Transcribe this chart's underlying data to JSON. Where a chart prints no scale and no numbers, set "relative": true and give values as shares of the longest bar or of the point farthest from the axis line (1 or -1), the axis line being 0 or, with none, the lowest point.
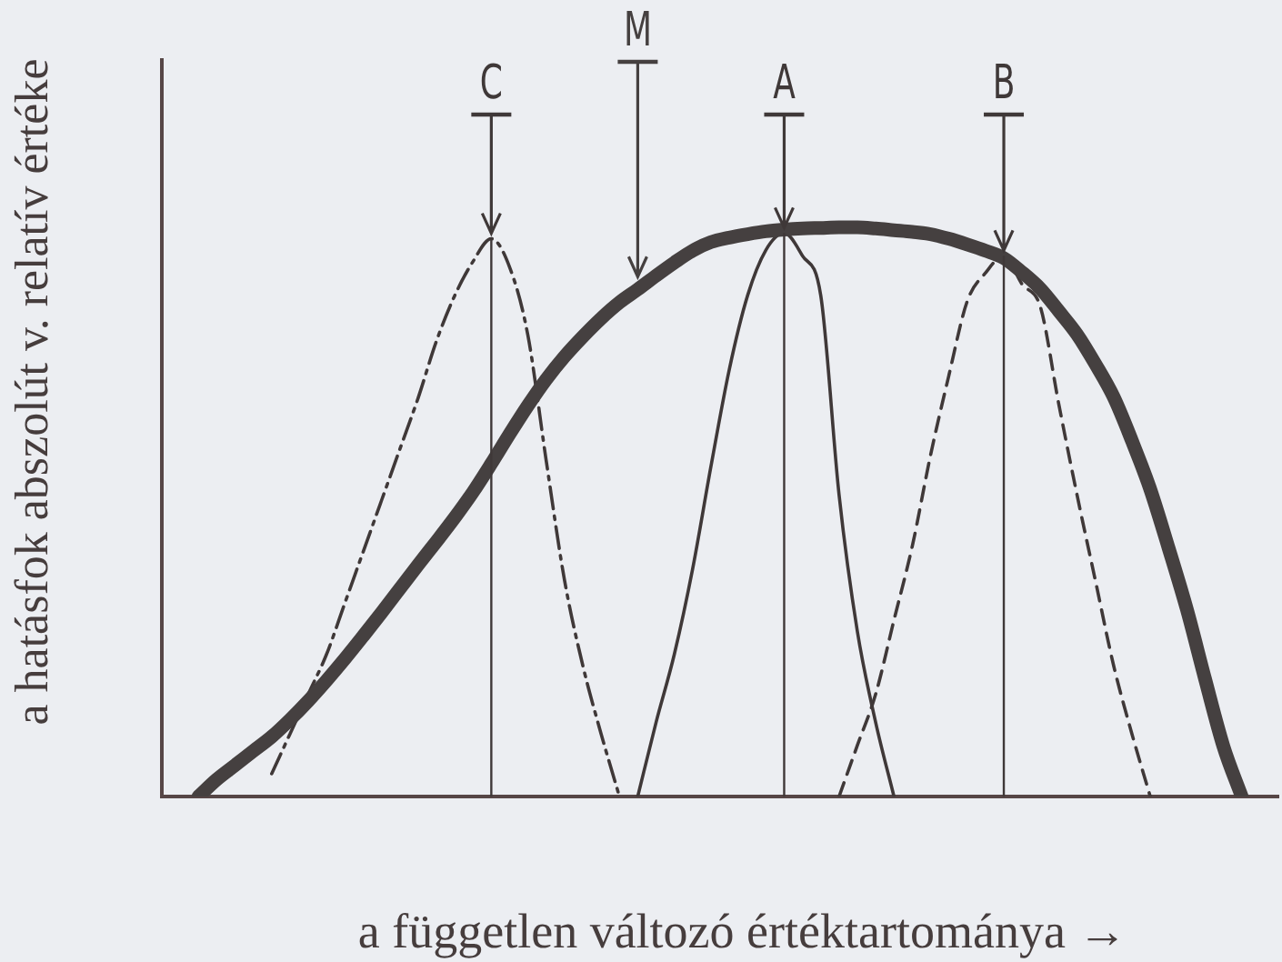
{
  "chart_data": {
    "type": "line",
    "relative": true,
    "xlabel": "a független változó értéktartománya →",
    "ylabel": "a hatásfok abszolút v. relatív értéke",
    "categories": [
      null,
      null,
      null,
      null,
      null,
      null,
      null,
      null,
      null,
      null,
      null,
      null,
      null,
      null,
      null,
      null,
      null,
      null,
      null,
      null,
      null,
      null,
      null,
      null,
      null,
      null,
      null,
      null,
      null,
      null,
      null,
      null,
      null,
      null,
      null,
      null,
      null,
      null,
      null,
      null,
      null,
      null,
      null,
      null,
      null,
      null,
      null,
      null,
      null,
      null,
      null,
      null,
      null,
      null,
      null,
      null,
      null,
      null,
      null,
      null,
      null,
      null
    ],
    "series": [
      {
        "name": "C",
        "color": "#3f3838",
        "line_style": "dashdot",
        "values": [
          null,
          null,
          null,
          null,
          null,
          null,
          0.04,
          0.11,
          0.18,
          0.25,
          0.34,
          0.43,
          0.52,
          0.61,
          0.7,
          0.8,
          0.88,
          0.94,
          0.98,
          0.93,
          0.81,
          0.59,
          0.38,
          0.23,
          0.11,
          0,
          null,
          null,
          null,
          null,
          null,
          null,
          null,
          null,
          null,
          null,
          null,
          null,
          null,
          null,
          null,
          null,
          null,
          null,
          null,
          null,
          null,
          null,
          null,
          null,
          null,
          null,
          null,
          null,
          null,
          null,
          null,
          null,
          null,
          null,
          null,
          null
        ]
      },
      {
        "name": "M",
        "color": "#454040",
        "line_style": "solid",
        "values": [
          null,
          null,
          0,
          0.03,
          0.055,
          0.08,
          0.105,
          0.135,
          0.168,
          0.204,
          0.242,
          0.282,
          0.323,
          0.365,
          0.407,
          0.448,
          0.49,
          0.535,
          0.585,
          0.637,
          0.687,
          0.733,
          0.773,
          0.808,
          0.84,
          0.868,
          0.891,
          0.915,
          0.938,
          0.959,
          0.974,
          0.982,
          0.988,
          0.993,
          0.996,
          0.998,
          0.999,
          1,
          1,
          0.998,
          0.995,
          0.992,
          0.988,
          0.98,
          0.97,
          0.959,
          0.946,
          0.921,
          0.892,
          0.853,
          0.812,
          0.76,
          0.702,
          0.625,
          0.54,
          0.437,
          0.329,
          0.206,
          0.088,
          0,
          null,
          null
        ]
      },
      {
        "name": "A",
        "color": "#3f3838",
        "line_style": "solid",
        "values": [
          null,
          null,
          null,
          null,
          null,
          null,
          null,
          null,
          null,
          null,
          null,
          null,
          null,
          null,
          null,
          null,
          null,
          null,
          null,
          null,
          null,
          null,
          null,
          null,
          null,
          null,
          0,
          0.13,
          0.25,
          0.4,
          0.58,
          0.75,
          0.88,
          0.96,
          0.99,
          0.95,
          0.88,
          0.53,
          0.29,
          0.13,
          0,
          null,
          null,
          null,
          null,
          null,
          null,
          null,
          null,
          null,
          null,
          null,
          null,
          null,
          null,
          null,
          null,
          null,
          null,
          null,
          null,
          null
        ]
      },
      {
        "name": "B",
        "color": "#3f3838",
        "line_style": "dashed",
        "values": [
          null,
          null,
          null,
          null,
          null,
          null,
          null,
          null,
          null,
          null,
          null,
          null,
          null,
          null,
          null,
          null,
          null,
          null,
          null,
          null,
          null,
          null,
          null,
          null,
          null,
          null,
          null,
          null,
          null,
          null,
          null,
          null,
          null,
          null,
          null,
          null,
          null,
          0,
          0.09,
          0.18,
          0.31,
          0.44,
          0.6,
          0.74,
          0.87,
          0.92,
          0.95,
          0.9,
          0.86,
          0.69,
          0.53,
          0.38,
          0.23,
          0.11,
          0,
          null,
          null,
          null,
          null,
          null,
          null,
          null
        ]
      }
    ],
    "grid": false,
    "legend": false,
    "marker": "none",
    "tick_labels": false
  }
}
